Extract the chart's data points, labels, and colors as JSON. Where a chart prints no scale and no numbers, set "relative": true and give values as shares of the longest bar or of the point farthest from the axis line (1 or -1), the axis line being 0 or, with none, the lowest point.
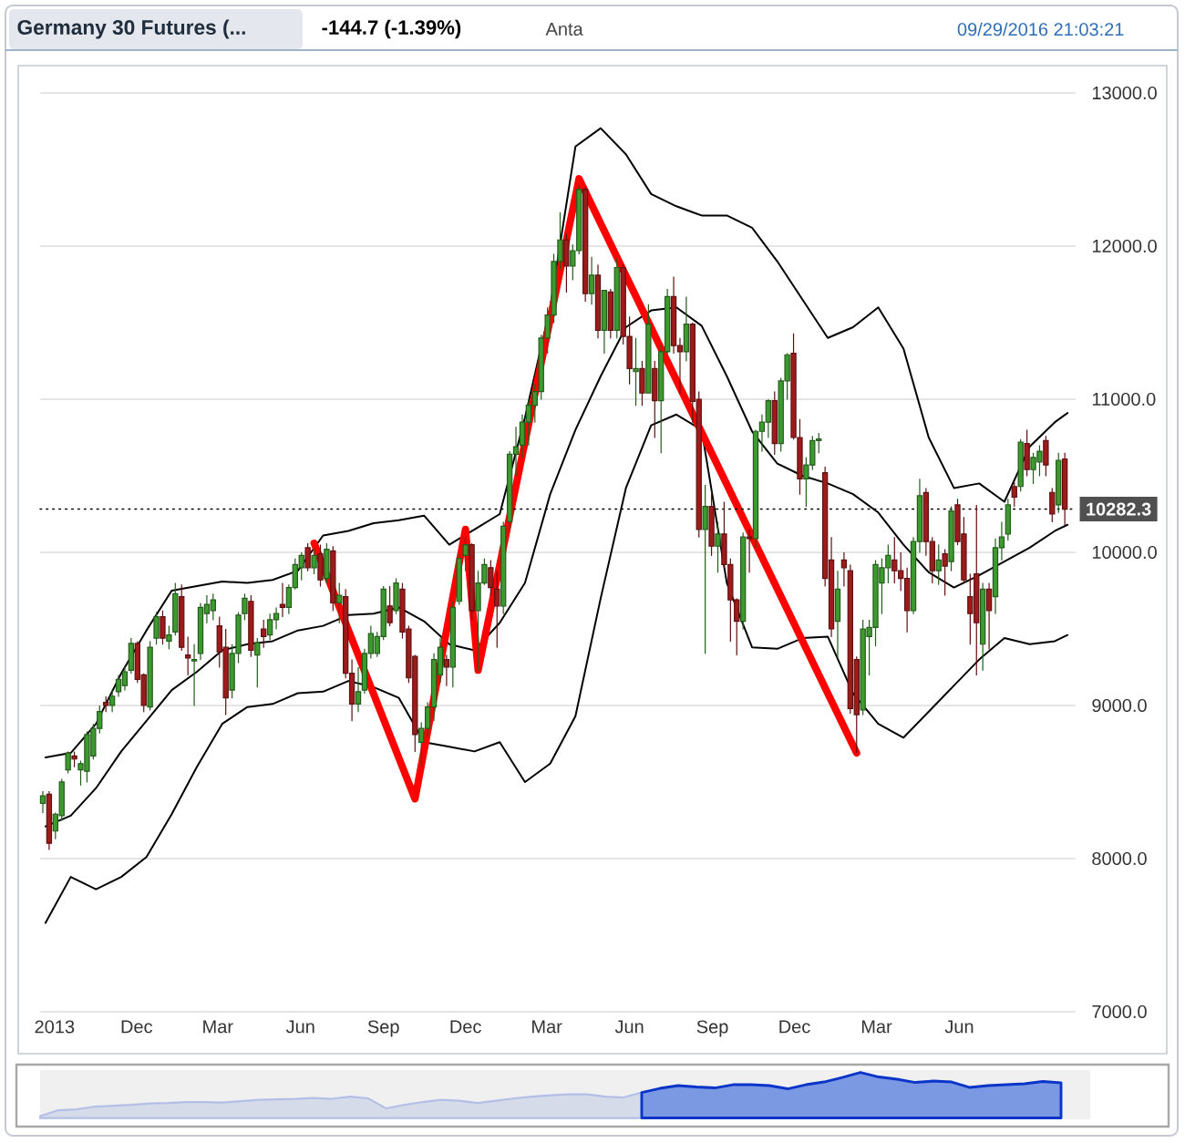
{
  "chart_data": [
    {
      "type": "candlestick",
      "title": "Germany 30 Futures (...",
      "annotations": [
        "-144.7 (-1.39%)",
        "Anta",
        "09/29/2016 21:03:21"
      ],
      "x": [
        "2013-08-19",
        "2013-08-26",
        "2013-09-02",
        "2013-09-09",
        "2013-09-16",
        "2013-09-23",
        "2013-09-30",
        "2013-10-07",
        "2013-10-14",
        "2013-10-21",
        "2013-10-28",
        "2013-11-04",
        "2013-11-11",
        "2013-11-18",
        "2013-11-25",
        "2013-12-02",
        "2013-12-09",
        "2013-12-16",
        "2013-12-23",
        "2013-12-30",
        "2014-01-06",
        "2014-01-13",
        "2014-01-20",
        "2014-01-27",
        "2014-02-03",
        "2014-02-10",
        "2014-02-17",
        "2014-02-24",
        "2014-03-03",
        "2014-03-10",
        "2014-03-17",
        "2014-03-24",
        "2014-03-31",
        "2014-04-07",
        "2014-04-14",
        "2014-04-21",
        "2014-04-28",
        "2014-05-05",
        "2014-05-12",
        "2014-05-19",
        "2014-05-26",
        "2014-06-02",
        "2014-06-09",
        "2014-06-16",
        "2014-06-23",
        "2014-06-30",
        "2014-07-07",
        "2014-07-14",
        "2014-07-21",
        "2014-07-28",
        "2014-08-04",
        "2014-08-11",
        "2014-08-18",
        "2014-08-25",
        "2014-09-01",
        "2014-09-08",
        "2014-09-15",
        "2014-09-22",
        "2014-09-29",
        "2014-10-06",
        "2014-10-13",
        "2014-10-20",
        "2014-10-27",
        "2014-11-03",
        "2014-11-10",
        "2014-11-17",
        "2014-11-24",
        "2014-12-01",
        "2014-12-08",
        "2014-12-15",
        "2014-12-22",
        "2014-12-29",
        "2015-01-05",
        "2015-01-12",
        "2015-01-19",
        "2015-01-26",
        "2015-02-02",
        "2015-02-09",
        "2015-02-16",
        "2015-02-23",
        "2015-03-02",
        "2015-03-09",
        "2015-03-16",
        "2015-03-23",
        "2015-03-30",
        "2015-04-06",
        "2015-04-13",
        "2015-04-20",
        "2015-04-27",
        "2015-05-04",
        "2015-05-11",
        "2015-05-18",
        "2015-05-25",
        "2015-06-01",
        "2015-06-08",
        "2015-06-15",
        "2015-06-22",
        "2015-06-29",
        "2015-07-06",
        "2015-07-13",
        "2015-07-20",
        "2015-07-27",
        "2015-08-03",
        "2015-08-10",
        "2015-08-17",
        "2015-08-24",
        "2015-08-31",
        "2015-09-07",
        "2015-09-14",
        "2015-09-21",
        "2015-09-28",
        "2015-10-05",
        "2015-10-12",
        "2015-10-19",
        "2015-10-26",
        "2015-11-02",
        "2015-11-09",
        "2015-11-16",
        "2015-11-23",
        "2015-11-30",
        "2015-12-07",
        "2015-12-14",
        "2015-12-21",
        "2015-12-28",
        "2016-01-04",
        "2016-01-11",
        "2016-01-18",
        "2016-01-25",
        "2016-02-01",
        "2016-02-08",
        "2016-02-15",
        "2016-02-22",
        "2016-02-29",
        "2016-03-07",
        "2016-03-14",
        "2016-03-21",
        "2016-03-28",
        "2016-04-04",
        "2016-04-11",
        "2016-04-18",
        "2016-04-25",
        "2016-05-02",
        "2016-05-09",
        "2016-05-16",
        "2016-05-23",
        "2016-05-30",
        "2016-06-06",
        "2016-06-13",
        "2016-06-20",
        "2016-06-27",
        "2016-07-04",
        "2016-07-11",
        "2016-07-18",
        "2016-07-25",
        "2016-08-01",
        "2016-08-08",
        "2016-08-15",
        "2016-08-22",
        "2016-08-29",
        "2016-09-05",
        "2016-09-12",
        "2016-09-19",
        "2016-09-26"
      ],
      "ohlc": [
        [
          8360,
          8440,
          8300,
          8410
        ],
        [
          8420,
          8440,
          8060,
          8100
        ],
        [
          8180,
          8300,
          8130,
          8290
        ],
        [
          8280,
          8520,
          8250,
          8500
        ],
        [
          8580,
          8700,
          8560,
          8690
        ],
        [
          8670,
          8700,
          8600,
          8650
        ],
        [
          8580,
          8640,
          8480,
          8620
        ],
        [
          8570,
          8830,
          8500,
          8810
        ],
        [
          8670,
          8880,
          8650,
          8850
        ],
        [
          8850,
          9000,
          8820,
          8960
        ],
        [
          9020,
          9060,
          8960,
          9000
        ],
        [
          9000,
          9100,
          8960,
          9060
        ],
        [
          9090,
          9200,
          9060,
          9170
        ],
        [
          9130,
          9260,
          9100,
          9220
        ],
        [
          9230,
          9440,
          9210,
          9405
        ],
        [
          9405,
          9420,
          9150,
          9170
        ],
        [
          9200,
          9210,
          8960,
          9000
        ],
        [
          8990,
          9420,
          8970,
          9380
        ],
        [
          9440,
          9610,
          9400,
          9580
        ],
        [
          9580,
          9620,
          9400,
          9440
        ],
        [
          9420,
          9520,
          9370,
          9460
        ],
        [
          9480,
          9800,
          9460,
          9730
        ],
        [
          9710,
          9790,
          9360,
          9380
        ],
        [
          9330,
          9450,
          9200,
          9310
        ],
        [
          9290,
          9400,
          9000,
          9300
        ],
        [
          9340,
          9670,
          9300,
          9640
        ],
        [
          9600,
          9720,
          9540,
          9660
        ],
        [
          9620,
          9730,
          9560,
          9690
        ],
        [
          9520,
          9580,
          9250,
          9350
        ],
        [
          9380,
          9500,
          8940,
          9050
        ],
        [
          9100,
          9400,
          9050,
          9340
        ],
        [
          9340,
          9610,
          9280,
          9590
        ],
        [
          9600,
          9730,
          9560,
          9700
        ],
        [
          9680,
          9720,
          9320,
          9360
        ],
        [
          9330,
          9440,
          9120,
          9410
        ],
        [
          9500,
          9560,
          9380,
          9450
        ],
        [
          9460,
          9600,
          9430,
          9560
        ],
        [
          9560,
          9640,
          9500,
          9600
        ],
        [
          9660,
          9800,
          9580,
          9640
        ],
        [
          9640,
          9790,
          9600,
          9770
        ],
        [
          9770,
          9960,
          9760,
          9920
        ],
        [
          9900,
          10000,
          9820,
          9980
        ],
        [
          10030,
          10060,
          9880,
          9900
        ],
        [
          9900,
          10020,
          9860,
          9980
        ],
        [
          9990,
          10050,
          9780,
          9820
        ],
        [
          9830,
          10060,
          9800,
          10020
        ],
        [
          10010,
          10040,
          9620,
          9670
        ],
        [
          9670,
          9800,
          9540,
          9720
        ],
        [
          9710,
          9760,
          9180,
          9210
        ],
        [
          9210,
          9300,
          8900,
          9010
        ],
        [
          9010,
          9250,
          8960,
          9090
        ],
        [
          9100,
          9370,
          9080,
          9340
        ],
        [
          9340,
          9520,
          9310,
          9470
        ],
        [
          9340,
          9480,
          9320,
          9450
        ],
        [
          9450,
          9780,
          9430,
          9760
        ],
        [
          9650,
          9780,
          9520,
          9540
        ],
        [
          9620,
          9830,
          9600,
          9800
        ],
        [
          9760,
          9800,
          9440,
          9480
        ],
        [
          9500,
          9520,
          9150,
          9180
        ],
        [
          9320,
          9330,
          8700,
          8810
        ],
        [
          8760,
          8890,
          8600,
          8850
        ],
        [
          8850,
          9020,
          8800,
          8990
        ],
        [
          8990,
          9340,
          8900,
          9300
        ],
        [
          9200,
          9440,
          9150,
          9380
        ],
        [
          9300,
          9330,
          9130,
          9250
        ],
        [
          9250,
          9680,
          9120,
          9640
        ],
        [
          9680,
          9990,
          9660,
          9960
        ],
        [
          9980,
          10100,
          9880,
          10050
        ],
        [
          10050,
          10060,
          9560,
          9620
        ],
        [
          9620,
          9880,
          9230,
          9800
        ],
        [
          9800,
          9960,
          9790,
          9920
        ],
        [
          9900,
          9950,
          9720,
          9770
        ],
        [
          9760,
          9880,
          9380,
          9650
        ],
        [
          9650,
          10200,
          9600,
          10170
        ],
        [
          10200,
          10660,
          10150,
          10640
        ],
        [
          10640,
          10820,
          10500,
          10690
        ],
        [
          10700,
          10900,
          10620,
          10850
        ],
        [
          10850,
          11000,
          10700,
          10960
        ],
        [
          10960,
          11100,
          10850,
          11050
        ],
        [
          11050,
          11420,
          11000,
          11400
        ],
        [
          11400,
          11600,
          11300,
          11550
        ],
        [
          11550,
          11950,
          11500,
          11900
        ],
        [
          11900,
          12220,
          11850,
          12040
        ],
        [
          12040,
          12080,
          11700,
          11870
        ],
        [
          11870,
          12010,
          11780,
          11970
        ],
        [
          11970,
          12400,
          11950,
          12370
        ],
        [
          12370,
          12390,
          11640,
          11690
        ],
        [
          11690,
          11930,
          11620,
          11810
        ],
        [
          11810,
          11880,
          11400,
          11450
        ],
        [
          11450,
          11710,
          11300,
          11710
        ],
        [
          11700,
          11720,
          11400,
          11450
        ],
        [
          11450,
          11920,
          11400,
          11860
        ],
        [
          11860,
          11880,
          11360,
          11410
        ],
        [
          11410,
          11540,
          11100,
          11200
        ],
        [
          11180,
          11400,
          10960,
          11200
        ],
        [
          11200,
          11250,
          10960,
          11040
        ],
        [
          11040,
          11620,
          11040,
          11490
        ],
        [
          11200,
          11250,
          10750,
          10990
        ],
        [
          10990,
          11350,
          10650,
          11310
        ],
        [
          11310,
          11720,
          11300,
          11670
        ],
        [
          11670,
          11800,
          11300,
          11350
        ],
        [
          11350,
          11400,
          11040,
          11310
        ],
        [
          11310,
          11670,
          11250,
          11490
        ],
        [
          11490,
          11500,
          10850,
          10985
        ],
        [
          11000,
          11050,
          10100,
          10150
        ],
        [
          10150,
          10440,
          9340,
          10300
        ],
        [
          10300,
          10400,
          9980,
          10040
        ],
        [
          10040,
          10200,
          9870,
          10120
        ],
        [
          10120,
          10330,
          9900,
          9920
        ],
        [
          9920,
          9960,
          9420,
          9690
        ],
        [
          9690,
          9700,
          9330,
          9550
        ],
        [
          9550,
          10130,
          9500,
          10100
        ],
        [
          10100,
          10150,
          9870,
          10090
        ],
        [
          10090,
          10800,
          10030,
          10790
        ],
        [
          10790,
          10900,
          10660,
          10850
        ],
        [
          10850,
          11000,
          10750,
          10990
        ],
        [
          10990,
          11050,
          10640,
          10710
        ],
        [
          10710,
          11140,
          10660,
          11120
        ],
        [
          11120,
          11300,
          11000,
          11290
        ],
        [
          11300,
          11430,
          10740,
          10750
        ],
        [
          10750,
          10870,
          10380,
          10480
        ],
        [
          10480,
          10620,
          10300,
          10570
        ],
        [
          10570,
          10760,
          10540,
          10730
        ],
        [
          10730,
          10780,
          10650,
          10740
        ],
        [
          10520,
          10560,
          9780,
          9830
        ],
        [
          9950,
          10100,
          9450,
          9500
        ],
        [
          9550,
          9880,
          9310,
          9760
        ],
        [
          9950,
          10000,
          9780,
          9900
        ],
        [
          9880,
          9920,
          8950,
          8980
        ],
        [
          9300,
          9320,
          8690,
          8940
        ],
        [
          8970,
          9560,
          8940,
          9500
        ],
        [
          9450,
          9560,
          9200,
          9510
        ],
        [
          9510,
          9950,
          9390,
          9920
        ],
        [
          9800,
          9960,
          9600,
          9900
        ],
        [
          9900,
          10050,
          9800,
          9980
        ],
        [
          9950,
          10100,
          9800,
          9880
        ],
        [
          9880,
          10000,
          9750,
          9830
        ],
        [
          9830,
          9900,
          9480,
          9620
        ],
        [
          9620,
          10100,
          9600,
          10070
        ],
        [
          10070,
          10480,
          10000,
          10370
        ],
        [
          10390,
          10420,
          9980,
          10070
        ],
        [
          10070,
          10100,
          9800,
          9880
        ],
        [
          9880,
          10050,
          9790,
          9950
        ],
        [
          9990,
          10020,
          9720,
          9910
        ],
        [
          9940,
          10300,
          9880,
          10270
        ],
        [
          10310,
          10350,
          10050,
          10070
        ],
        [
          10120,
          10230,
          9800,
          9820
        ],
        [
          9710,
          9860,
          9400,
          9600
        ],
        [
          9860,
          10310,
          9200,
          9540
        ],
        [
          9400,
          9800,
          9230,
          9760
        ],
        [
          9760,
          9800,
          9370,
          9620
        ],
        [
          9710,
          10090,
          9600,
          10030
        ],
        [
          10030,
          10200,
          9950,
          10100
        ],
        [
          10120,
          10350,
          10080,
          10310
        ],
        [
          10430,
          10460,
          10300,
          10360
        ],
        [
          10430,
          10740,
          10400,
          10720
        ],
        [
          10710,
          10800,
          10500,
          10540
        ],
        [
          10540,
          10650,
          10450,
          10620
        ],
        [
          10590,
          10700,
          10500,
          10660
        ],
        [
          10730,
          10760,
          10500,
          10570
        ],
        [
          10390,
          10420,
          10200,
          10250
        ],
        [
          10310,
          10650,
          10260,
          10600
        ],
        [
          10610,
          10650,
          10180,
          10282.3
        ]
      ],
      "colors": [
        "#3c9a2e",
        "#9e1b1b",
        "#3c9a2e",
        "#3c9a2e",
        "#3c9a2e",
        "#9e1b1b",
        "#3c9a2e",
        "#3c9a2e",
        "#3c9a2e",
        "#3c9a2e",
        "#9e1b1b",
        "#3c9a2e",
        "#3c9a2e",
        "#3c9a2e",
        "#3c9a2e",
        "#9e1b1b",
        "#9e1b1b",
        "#3c9a2e",
        "#3c9a2e",
        "#9e1b1b",
        "#3c9a2e",
        "#3c9a2e",
        "#9e1b1b",
        "#9e1b1b",
        "#3c9a2e",
        "#3c9a2e",
        "#3c9a2e",
        "#3c9a2e",
        "#9e1b1b",
        "#9e1b1b",
        "#3c9a2e",
        "#3c9a2e",
        "#3c9a2e",
        "#9e1b1b",
        "#3c9a2e",
        "#9e1b1b",
        "#3c9a2e",
        "#3c9a2e",
        "#9e1b1b",
        "#3c9a2e",
        "#3c9a2e",
        "#3c9a2e",
        "#9e1b1b",
        "#3c9a2e",
        "#9e1b1b",
        "#3c9a2e",
        "#9e1b1b",
        "#3c9a2e",
        "#9e1b1b",
        "#9e1b1b",
        "#3c9a2e",
        "#3c9a2e",
        "#3c9a2e",
        "#3c9a2e",
        "#3c9a2e",
        "#9e1b1b",
        "#3c9a2e",
        "#9e1b1b",
        "#9e1b1b",
        "#9e1b1b",
        "#3c9a2e",
        "#3c9a2e",
        "#3c9a2e",
        "#3c9a2e",
        "#9e1b1b",
        "#3c9a2e",
        "#3c9a2e",
        "#3c9a2e",
        "#9e1b1b",
        "#3c9a2e",
        "#3c9a2e",
        "#9e1b1b",
        "#9e1b1b",
        "#3c9a2e",
        "#3c9a2e",
        "#3c9a2e",
        "#3c9a2e",
        "#3c9a2e",
        "#3c9a2e",
        "#3c9a2e",
        "#3c9a2e",
        "#3c9a2e",
        "#3c9a2e",
        "#9e1b1b",
        "#3c9a2e",
        "#3c9a2e",
        "#9e1b1b",
        "#3c9a2e",
        "#9e1b1b",
        "#3c9a2e",
        "#9e1b1b",
        "#3c9a2e",
        "#9e1b1b",
        "#9e1b1b",
        "#3c9a2e",
        "#9e1b1b",
        "#3c9a2e",
        "#9e1b1b",
        "#3c9a2e",
        "#3c9a2e",
        "#9e1b1b",
        "#9e1b1b",
        "#3c9a2e",
        "#9e1b1b",
        "#9e1b1b",
        "#3c9a2e",
        "#9e1b1b",
        "#3c9a2e",
        "#9e1b1b",
        "#9e1b1b",
        "#9e1b1b",
        "#3c9a2e",
        "#9e1b1b",
        "#3c9a2e",
        "#3c9a2e",
        "#3c9a2e",
        "#9e1b1b",
        "#3c9a2e",
        "#3c9a2e",
        "#9e1b1b",
        "#9e1b1b",
        "#3c9a2e",
        "#3c9a2e",
        "#3c9a2e",
        "#9e1b1b",
        "#9e1b1b",
        "#3c9a2e",
        "#9e1b1b",
        "#9e1b1b",
        "#9e1b1b",
        "#3c9a2e",
        "#3c9a2e",
        "#3c9a2e",
        "#3c9a2e",
        "#3c9a2e",
        "#9e1b1b",
        "#9e1b1b",
        "#9e1b1b",
        "#3c9a2e",
        "#3c9a2e",
        "#9e1b1b",
        "#9e1b1b",
        "#3c9a2e",
        "#9e1b1b",
        "#3c9a2e",
        "#9e1b1b",
        "#9e1b1b",
        "#9e1b1b",
        "#9e1b1b",
        "#3c9a2e",
        "#9e1b1b",
        "#3c9a2e",
        "#3c9a2e",
        "#3c9a2e",
        "#9e1b1b",
        "#3c9a2e",
        "#9e1b1b",
        "#3c9a2e",
        "#3c9a2e",
        "#9e1b1b",
        "#9e1b1b",
        "#3c9a2e",
        "#9e1b1b"
      ],
      "series": [
        {
          "type": "line",
          "color": "#000000",
          "x": [
            "2013-08-22",
            "2013-09-19",
            "2013-10-17",
            "2013-11-14",
            "2013-12-12",
            "2014-01-09",
            "2014-02-06",
            "2014-03-06",
            "2014-04-03",
            "2014-05-01",
            "2014-05-29",
            "2014-06-26",
            "2014-07-24",
            "2014-08-21",
            "2014-09-18",
            "2014-10-16",
            "2014-11-13",
            "2014-12-11",
            "2015-01-08",
            "2015-02-05",
            "2015-03-05",
            "2015-04-02",
            "2015-04-30",
            "2015-05-28",
            "2015-06-25",
            "2015-07-23",
            "2015-08-20",
            "2015-09-17",
            "2015-10-15",
            "2015-11-12",
            "2015-12-10",
            "2016-01-07",
            "2016-02-04",
            "2016-03-03",
            "2016-03-31",
            "2016-04-28",
            "2016-05-26",
            "2016-06-23",
            "2016-07-21",
            "2016-08-18",
            "2016-09-15",
            "2016-09-29"
          ],
          "values": [
            8660,
            8690,
            8880,
            9210,
            9490,
            9750,
            9780,
            9810,
            9800,
            9820,
            9880,
            10110,
            10140,
            10190,
            10210,
            10240,
            10050,
            10150,
            10250,
            10880,
            11600,
            12650,
            12770,
            12600,
            12340,
            12260,
            12200,
            12200,
            12120,
            11900,
            11650,
            11400,
            11470,
            11600,
            11330,
            10750,
            10420,
            10450,
            10330,
            10690,
            10850,
            10910
          ]
        },
        {
          "type": "line",
          "color": "#000000",
          "x": [
            "2013-08-22",
            "2013-09-19",
            "2013-10-17",
            "2013-11-14",
            "2013-12-12",
            "2014-01-09",
            "2014-02-06",
            "2014-03-06",
            "2014-04-03",
            "2014-05-01",
            "2014-05-29",
            "2014-06-26",
            "2014-07-24",
            "2014-08-21",
            "2014-09-18",
            "2014-10-16",
            "2014-11-13",
            "2014-12-11",
            "2015-01-08",
            "2015-02-05",
            "2015-03-05",
            "2015-04-02",
            "2015-04-30",
            "2015-05-28",
            "2015-06-25",
            "2015-07-23",
            "2015-08-20",
            "2015-09-17",
            "2015-10-15",
            "2015-11-12",
            "2015-12-10",
            "2016-01-07",
            "2016-02-04",
            "2016-03-03",
            "2016-03-31",
            "2016-04-28",
            "2016-05-26",
            "2016-06-23",
            "2016-07-21",
            "2016-08-18",
            "2016-09-15",
            "2016-09-29"
          ],
          "values": [
            8210,
            8280,
            8460,
            8700,
            8900,
            9100,
            9220,
            9360,
            9400,
            9420,
            9490,
            9520,
            9590,
            9600,
            9640,
            9550,
            9400,
            9360,
            9540,
            9800,
            10380,
            10800,
            11150,
            11470,
            11580,
            11600,
            11480,
            11150,
            10790,
            10580,
            10500,
            10450,
            10380,
            10260,
            10050,
            9870,
            9770,
            9850,
            9940,
            10030,
            10140,
            10180
          ]
        },
        {
          "type": "line",
          "color": "#000000",
          "x": [
            "2013-08-22",
            "2013-09-19",
            "2013-10-17",
            "2013-11-14",
            "2013-12-12",
            "2014-01-09",
            "2014-02-06",
            "2014-03-06",
            "2014-04-03",
            "2014-05-01",
            "2014-05-29",
            "2014-06-26",
            "2014-07-24",
            "2014-08-21",
            "2014-09-18",
            "2014-10-16",
            "2014-11-13",
            "2014-12-11",
            "2015-01-08",
            "2015-02-05",
            "2015-03-05",
            "2015-04-02",
            "2015-04-30",
            "2015-05-28",
            "2015-06-25",
            "2015-07-23",
            "2015-08-20",
            "2015-09-17",
            "2015-10-15",
            "2015-11-12",
            "2015-12-10",
            "2016-01-07",
            "2016-02-04",
            "2016-03-03",
            "2016-03-31",
            "2016-04-28",
            "2016-05-26",
            "2016-06-23",
            "2016-07-21",
            "2016-08-18",
            "2016-09-15",
            "2016-09-29"
          ],
          "values": [
            7580,
            7880,
            7800,
            7880,
            8010,
            8290,
            8600,
            8880,
            8990,
            9010,
            9080,
            9090,
            9160,
            9120,
            9050,
            8760,
            8730,
            8700,
            8760,
            8500,
            8620,
            8930,
            9700,
            10420,
            10830,
            10900,
            10800,
            9800,
            9380,
            9370,
            9440,
            9450,
            9080,
            8880,
            8790,
            8960,
            9130,
            9300,
            9440,
            9400,
            9420,
            9460
          ]
        },
        {
          "type": "line",
          "color": "#ff0000",
          "x": [
            "2014-06-16",
            "2014-10-06",
            "2014-12-01",
            "2014-12-15",
            "2015-04-06",
            "2016-02-08"
          ],
          "values": [
            10060,
            8390,
            10150,
            9230,
            12440,
            8690
          ]
        }
      ],
      "xlim": [
        "2013-08-16",
        "2016-10-08"
      ],
      "xticks": [
        {
          "value": "2013-09-01",
          "label": "2013"
        },
        {
          "value": "2013-12-01",
          "label": "Dec"
        },
        {
          "value": "2014-03-01",
          "label": "Mar"
        },
        {
          "value": "2014-06-01",
          "label": "Jun"
        },
        {
          "value": "2014-09-01",
          "label": "Sep"
        },
        {
          "value": "2014-12-01",
          "label": "Dec"
        },
        {
          "value": "2015-03-01",
          "label": "Mar"
        },
        {
          "value": "2015-06-01",
          "label": "Jun"
        },
        {
          "value": "2015-09-01",
          "label": "Sep"
        },
        {
          "value": "2015-12-01",
          "label": "Dec"
        },
        {
          "value": "2016-03-01",
          "label": "Mar"
        },
        {
          "value": "2016-06-01",
          "label": "Jun"
        }
      ],
      "ylim": [
        7000,
        13000
      ],
      "yticks": [
        {
          "value": 7000,
          "label": "7000.0"
        },
        {
          "value": 8000,
          "label": "8000.0"
        },
        {
          "value": 9000,
          "label": "9000.0"
        },
        {
          "value": 10000,
          "label": "10000.0"
        },
        {
          "value": 11000,
          "label": "11000.0"
        },
        {
          "value": 12000,
          "label": "12000.0"
        },
        {
          "value": 13000,
          "label": "13000.0"
        }
      ],
      "grid": "y",
      "ref_lines": [
        {
          "axis": "y",
          "value": 10282.3,
          "label": "10282.3",
          "color": "#000000",
          "line_style": "dotted"
        }
      ]
    },
    {
      "type": "area",
      "relative": true,
      "categories": [
        null,
        null,
        null,
        null,
        null,
        null,
        null,
        null,
        null,
        null,
        null,
        null,
        null,
        null,
        null,
        null,
        null,
        null,
        null,
        null,
        null,
        null,
        null,
        null,
        null,
        null,
        null,
        null,
        null,
        null,
        null,
        null,
        null,
        null,
        null,
        null,
        null,
        null,
        null,
        null,
        null,
        null,
        null,
        null,
        null,
        null,
        null,
        null,
        null,
        null,
        null,
        null,
        null,
        null,
        null,
        null,
        null
      ],
      "series": [
        {
          "color": "#d5dbe9",
          "values": [
            0.04,
            0.17,
            0.19,
            0.25,
            0.27,
            0.29,
            0.32,
            0.33,
            0.35,
            0.35,
            0.34,
            0.37,
            0.4,
            0.41,
            0.42,
            0.44,
            0.42,
            0.47,
            0.43,
            0.21,
            0.29,
            0.35,
            0.4,
            0.38,
            0.33,
            0.38,
            0.43,
            0.47,
            0.5,
            0.52,
            0.52,
            0.47,
            0.45,
            0.56,
            null,
            null,
            null,
            null,
            null,
            null,
            null,
            null,
            null,
            null,
            null,
            null,
            null,
            null,
            null,
            null,
            null,
            null,
            null,
            null,
            null,
            null,
            null
          ]
        },
        {
          "color": "#7b98e3",
          "values": [
            null,
            null,
            null,
            null,
            null,
            null,
            null,
            null,
            null,
            null,
            null,
            null,
            null,
            null,
            null,
            null,
            null,
            null,
            null,
            null,
            null,
            null,
            null,
            null,
            null,
            null,
            null,
            null,
            null,
            null,
            null,
            null,
            null,
            0.56,
            0.65,
            0.71,
            0.68,
            0.66,
            0.73,
            0.73,
            0.71,
            0.64,
            0.73,
            0.79,
            0.89,
            1,
            0.9,
            0.85,
            0.78,
            0.81,
            0.79,
            0.67,
            0.71,
            0.73,
            0.75,
            0.8,
            0.77
          ]
        }
      ]
    }
  ]
}
